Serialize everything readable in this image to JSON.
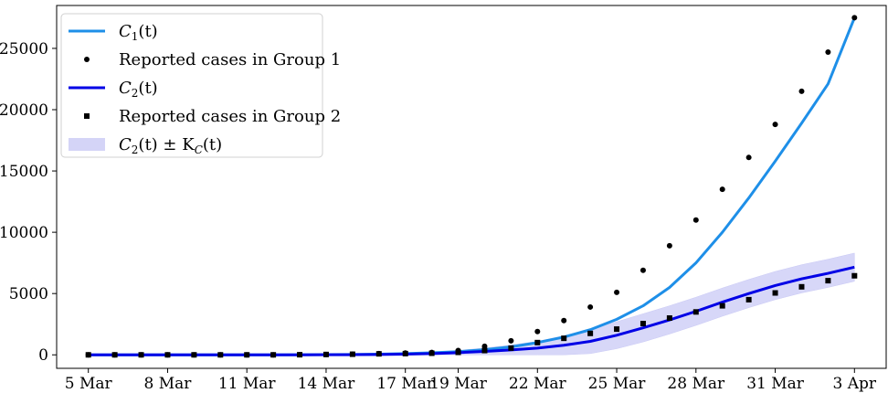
{
  "chart_data": {
    "type": "line",
    "x_tick_labels": [
      "5 Mar",
      "8 Mar",
      "11 Mar",
      "14 Mar",
      "17 Mar",
      "19 Mar",
      "22 Mar",
      "25 Mar",
      "28 Mar",
      "31 Mar",
      "3 Apr"
    ],
    "x_tick_days": [
      0,
      3,
      6,
      9,
      12,
      14,
      17,
      20,
      23,
      26,
      29
    ],
    "y_ticks": [
      0,
      5000,
      10000,
      15000,
      20000,
      25000
    ],
    "y_tick_labels": [
      "0",
      "5000",
      "10000",
      "15000",
      "20000",
      "25000"
    ],
    "ylim": [
      -1100,
      28500
    ],
    "xlim": [
      -1.2,
      30.2
    ],
    "x_days": [
      0,
      1,
      2,
      3,
      4,
      5,
      6,
      7,
      8,
      9,
      10,
      11,
      12,
      13,
      14,
      15,
      16,
      17,
      18,
      19,
      20,
      21,
      22,
      23,
      24,
      25,
      26,
      27,
      28,
      29
    ],
    "series": [
      {
        "name": "C_1(t)",
        "kind": "line",
        "color": "#1e8fe8",
        "values": [
          0,
          0,
          0,
          0,
          0,
          0,
          0,
          0,
          5,
          15,
          30,
          60,
          100,
          170,
          260,
          420,
          650,
          1000,
          1450,
          2050,
          2900,
          4000,
          5500,
          7500,
          10000,
          12800,
          15800,
          18900,
          22100,
          27500
        ]
      },
      {
        "name": "Reported cases in Group 1",
        "kind": "circle-markers",
        "color": "#000000",
        "values": [
          0,
          0,
          0,
          0,
          0,
          0,
          0,
          0,
          10,
          30,
          60,
          100,
          150,
          200,
          350,
          700,
          1150,
          1900,
          2800,
          3900,
          5100,
          6900,
          8900,
          11000,
          13500,
          16100,
          18800,
          21500,
          24700,
          27500
        ]
      },
      {
        "name": "C_2(t)",
        "kind": "line",
        "color": "#0000e6",
        "values": [
          0,
          0,
          0,
          0,
          0,
          0,
          0,
          0,
          0,
          5,
          15,
          30,
          60,
          100,
          180,
          280,
          400,
          550,
          780,
          1100,
          1600,
          2200,
          2850,
          3550,
          4300,
          5000,
          5650,
          6200,
          6650,
          7150
        ]
      },
      {
        "name": "Reported cases in Group 2",
        "kind": "square-markers",
        "color": "#000000",
        "values": [
          0,
          0,
          0,
          0,
          0,
          0,
          0,
          0,
          10,
          30,
          50,
          80,
          100,
          130,
          200,
          350,
          550,
          1000,
          1350,
          1750,
          2100,
          2550,
          3000,
          3500,
          4000,
          4500,
          5050,
          5550,
          6050,
          6450
        ]
      },
      {
        "name": "C_2(t) ± K_C(t)",
        "kind": "band",
        "color": "#c9c9f5",
        "center_series": 2,
        "halfwidth": [
          0,
          0,
          0,
          0,
          0,
          0,
          0,
          0,
          0,
          5,
          15,
          30,
          60,
          100,
          180,
          280,
          400,
          550,
          780,
          1000,
          1100,
          1150,
          1150,
          1150,
          1150,
          1150,
          1150,
          1150,
          1150,
          1150
        ]
      }
    ],
    "legend_position": "upper-left",
    "legend": [
      {
        "kind": "line",
        "color": "#1e8fe8",
        "label_main": "C",
        "label_sub": "1",
        "label_rest": "(t)"
      },
      {
        "kind": "circle",
        "color": "#000000",
        "text": "Reported cases in Group 1"
      },
      {
        "kind": "line",
        "color": "#0000e6",
        "label_main": "C",
        "label_sub": "2",
        "label_rest": "(t)"
      },
      {
        "kind": "square",
        "color": "#000000",
        "text": "Reported cases in Group 2"
      },
      {
        "kind": "band",
        "color": "#c9c9f5",
        "label_main": "C",
        "label_sub": "2",
        "label_rest": "(t) ± K",
        "label_sub2": "C",
        "label_rest2": "(t)"
      }
    ]
  }
}
